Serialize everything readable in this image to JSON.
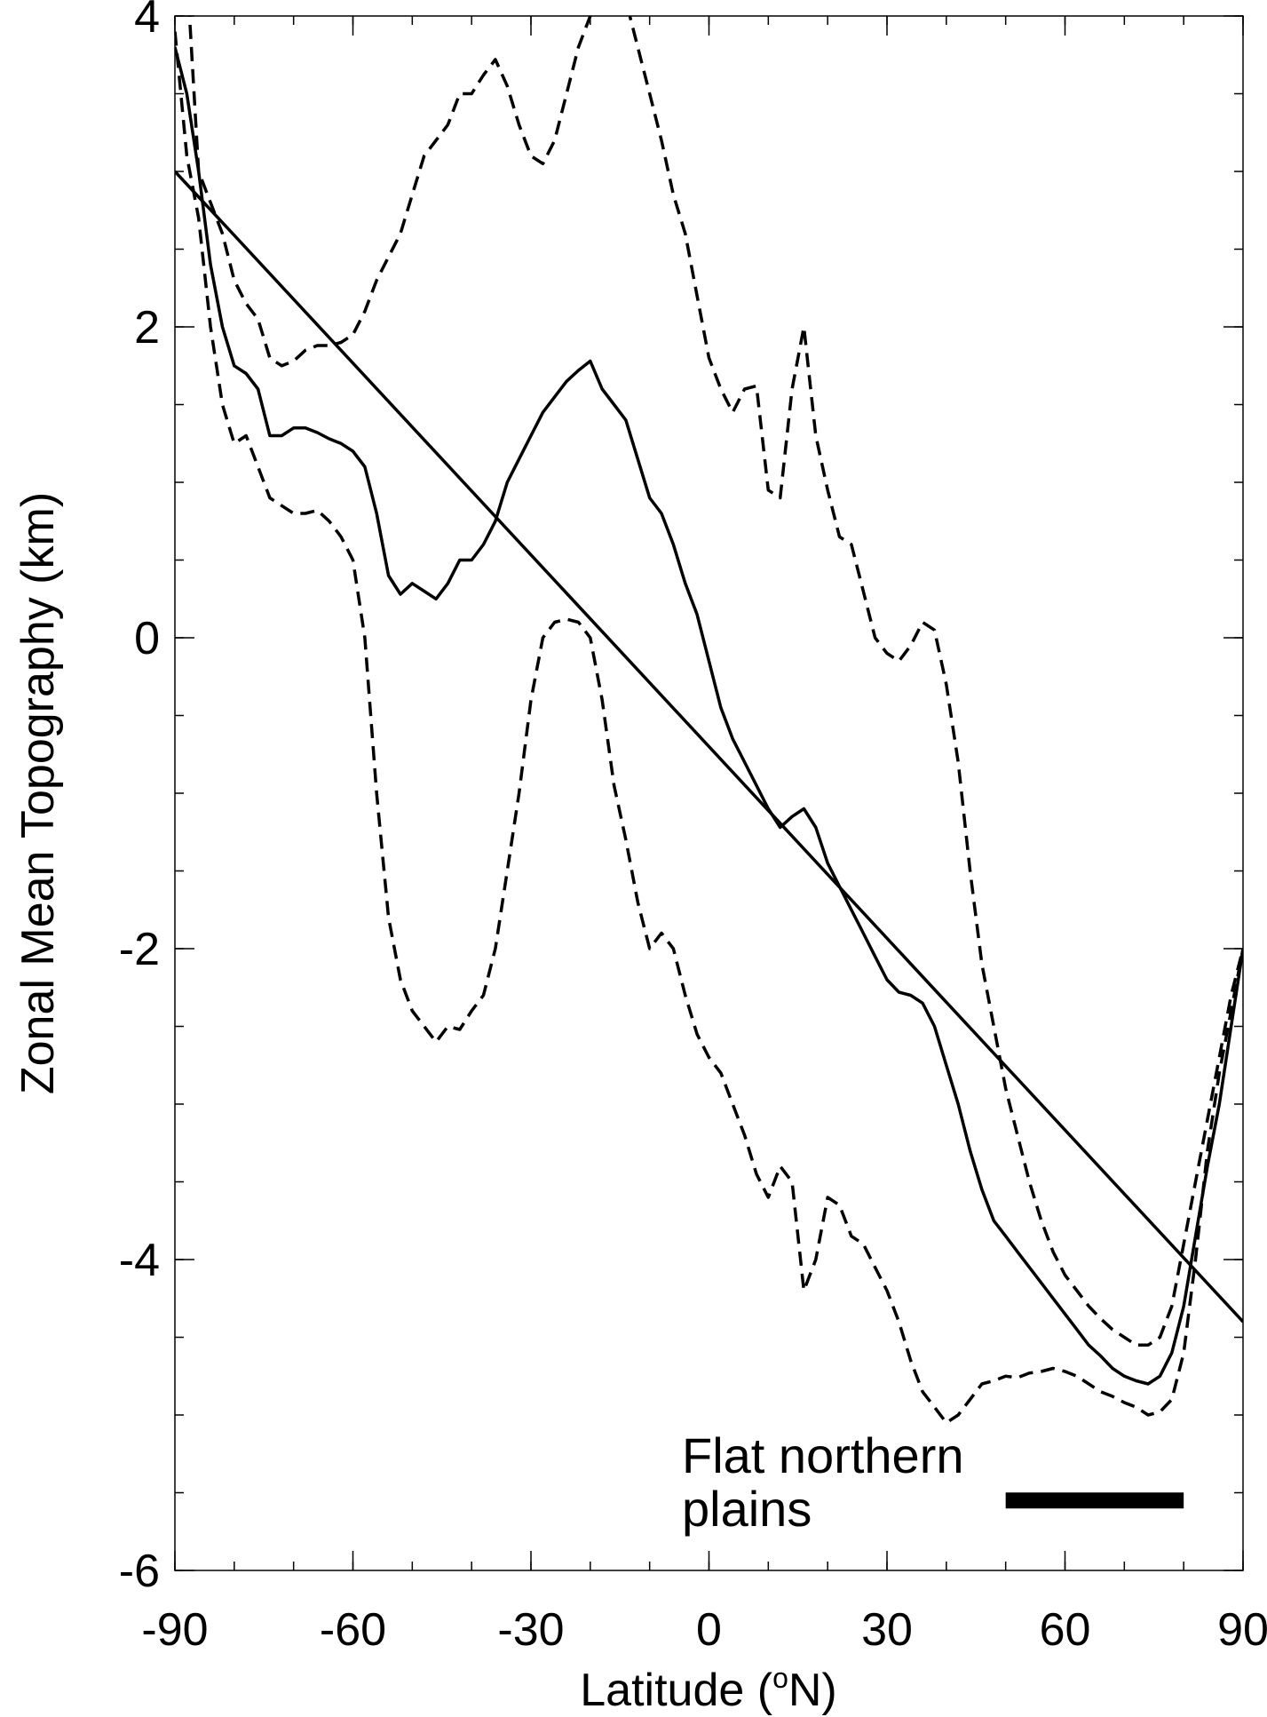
{
  "chart_data": {
    "type": "line",
    "xlabel_main": "Latitude (",
    "xlabel_sup": "o",
    "xlabel_end": "N)",
    "ylabel": "Zonal Mean Topography (km)",
    "xlim": [
      -90,
      90
    ],
    "ylim": [
      -6,
      4
    ],
    "x_ticks": [
      -90,
      -60,
      -30,
      0,
      30,
      60,
      90
    ],
    "x_tick_labels": [
      "-90",
      "-60",
      "-30",
      "0",
      "30",
      "60",
      "90"
    ],
    "y_ticks": [
      -6,
      -4,
      -2,
      0,
      2,
      4
    ],
    "y_tick_labels": [
      "-6",
      "-4",
      "-2",
      "0",
      "2",
      "4"
    ],
    "grid": false,
    "annotation": {
      "line1": "Flat northern",
      "line2": "plains",
      "bar_x": [
        50,
        80
      ],
      "bar_y": -5.55
    },
    "series": [
      {
        "style": "solid",
        "x": [
          -90,
          -88,
          -86,
          -84,
          -82,
          -80,
          -78,
          -76,
          -74,
          -72,
          -70,
          -68,
          -66,
          -64,
          -62,
          -60,
          -58,
          -56,
          -54,
          -52,
          -50,
          -48,
          -46,
          -44,
          -42,
          -40,
          -38,
          -36,
          -34,
          -32,
          -30,
          -28,
          -26,
          -24,
          -22,
          -20,
          -18,
          -16,
          -14,
          -12,
          -10,
          -8,
          -6,
          -4,
          -2,
          0,
          2,
          4,
          6,
          8,
          10,
          12,
          14,
          16,
          18,
          20,
          22,
          24,
          26,
          28,
          30,
          32,
          34,
          36,
          38,
          40,
          42,
          44,
          46,
          48,
          50,
          52,
          54,
          56,
          58,
          60,
          62,
          64,
          66,
          68,
          70,
          72,
          74,
          76,
          78,
          80,
          82,
          84,
          86,
          88,
          90
        ],
        "y": [
          3.8,
          3.5,
          3.0,
          2.4,
          2.0,
          1.75,
          1.7,
          1.6,
          1.3,
          1.3,
          1.35,
          1.35,
          1.32,
          1.28,
          1.25,
          1.2,
          1.1,
          0.8,
          0.4,
          0.28,
          0.35,
          0.3,
          0.25,
          0.35,
          0.5,
          0.5,
          0.6,
          0.75,
          1.0,
          1.15,
          1.3,
          1.45,
          1.55,
          1.65,
          1.72,
          1.78,
          1.6,
          1.5,
          1.4,
          1.15,
          0.9,
          0.8,
          0.6,
          0.35,
          0.15,
          -0.15,
          -0.45,
          -0.65,
          -0.8,
          -0.95,
          -1.1,
          -1.22,
          -1.15,
          -1.1,
          -1.22,
          -1.45,
          -1.6,
          -1.75,
          -1.9,
          -2.05,
          -2.2,
          -2.28,
          -2.3,
          -2.35,
          -2.5,
          -2.75,
          -3.0,
          -3.3,
          -3.55,
          -3.75,
          -3.85,
          -3.95,
          -4.05,
          -4.15,
          -4.25,
          -4.35,
          -4.45,
          -4.55,
          -4.62,
          -4.7,
          -4.75,
          -4.78,
          -4.8,
          -4.75,
          -4.6,
          -4.3,
          -3.85,
          -3.4,
          -3.0,
          -2.5,
          -2.0
        ]
      },
      {
        "style": "solid",
        "x": [
          -90,
          90
        ],
        "y": [
          3.0,
          -4.4
        ]
      },
      {
        "style": "dashed",
        "x": [
          -90,
          -88,
          -86,
          -84,
          -82,
          -80,
          -78,
          -76,
          -74,
          -72,
          -70,
          -68,
          -66,
          -64,
          -62,
          -60,
          -58,
          -56,
          -54,
          -52,
          -50,
          -48,
          -46,
          -44,
          -42,
          -40,
          -38,
          -36,
          -34,
          -32,
          -30,
          -28,
          -26,
          -24,
          -22,
          -20,
          -18,
          -16,
          -14,
          -12,
          -10,
          -8,
          -6,
          -4,
          -2,
          0,
          2,
          4,
          6,
          8,
          10,
          12,
          14,
          16,
          18,
          20,
          22,
          24,
          26,
          28,
          30,
          32,
          34,
          36,
          38,
          40,
          42,
          44,
          46,
          48,
          50,
          52,
          54,
          56,
          58,
          60,
          62,
          64,
          66,
          68,
          70,
          72,
          74,
          76,
          78,
          80,
          82,
          84,
          86,
          88,
          90
        ],
        "y": [
          4.1,
          4.3,
          3.0,
          2.8,
          2.6,
          2.3,
          2.15,
          2.05,
          1.8,
          1.75,
          1.78,
          1.85,
          1.88,
          1.88,
          1.9,
          1.95,
          2.1,
          2.3,
          2.45,
          2.6,
          2.85,
          3.1,
          3.2,
          3.3,
          3.5,
          3.5,
          3.62,
          3.72,
          3.55,
          3.3,
          3.1,
          3.05,
          3.2,
          3.5,
          3.8,
          4.0,
          4.1,
          4.15,
          4.1,
          3.8,
          3.5,
          3.2,
          2.85,
          2.6,
          2.2,
          1.8,
          1.6,
          1.45,
          1.6,
          1.62,
          0.95,
          0.9,
          1.6,
          2.0,
          1.3,
          0.95,
          0.65,
          0.6,
          0.3,
          0.0,
          -0.1,
          -0.15,
          -0.05,
          0.1,
          0.05,
          -0.3,
          -0.8,
          -1.5,
          -2.1,
          -2.5,
          -2.9,
          -3.2,
          -3.5,
          -3.75,
          -3.95,
          -4.1,
          -4.2,
          -4.3,
          -4.38,
          -4.45,
          -4.5,
          -4.55,
          -4.55,
          -4.5,
          -4.3,
          -3.9,
          -3.5,
          -3.1,
          -2.7,
          -2.3,
          -2.0
        ]
      },
      {
        "style": "dashed",
        "x": [
          -90,
          -88,
          -86,
          -84,
          -82,
          -80,
          -78,
          -76,
          -74,
          -72,
          -70,
          -68,
          -66,
          -64,
          -62,
          -60,
          -58,
          -56,
          -54,
          -52,
          -50,
          -48,
          -46,
          -44,
          -42,
          -40,
          -38,
          -36,
          -34,
          -32,
          -30,
          -28,
          -26,
          -24,
          -22,
          -20,
          -18,
          -16,
          -14,
          -12,
          -10,
          -8,
          -6,
          -4,
          -2,
          0,
          2,
          4,
          6,
          8,
          10,
          12,
          14,
          16,
          18,
          20,
          22,
          24,
          26,
          28,
          30,
          32,
          34,
          36,
          38,
          40,
          42,
          44,
          46,
          48,
          50,
          52,
          54,
          56,
          58,
          60,
          62,
          64,
          66,
          68,
          70,
          72,
          74,
          76,
          78,
          80,
          82,
          84,
          86,
          88,
          90
        ],
        "y": [
          3.9,
          3.1,
          2.7,
          2.0,
          1.5,
          1.25,
          1.3,
          1.1,
          0.9,
          0.85,
          0.8,
          0.8,
          0.82,
          0.75,
          0.65,
          0.5,
          0.0,
          -1.0,
          -1.8,
          -2.2,
          -2.4,
          -2.5,
          -2.6,
          -2.5,
          -2.52,
          -2.4,
          -2.3,
          -2.0,
          -1.5,
          -1.0,
          -0.4,
          0.0,
          0.1,
          0.12,
          0.1,
          0.0,
          -0.4,
          -0.95,
          -1.3,
          -1.7,
          -2.0,
          -1.9,
          -2.0,
          -2.3,
          -2.55,
          -2.7,
          -2.8,
          -3.0,
          -3.2,
          -3.45,
          -3.6,
          -3.4,
          -3.5,
          -4.2,
          -4.0,
          -3.6,
          -3.65,
          -3.85,
          -3.9,
          -4.05,
          -4.2,
          -4.4,
          -4.65,
          -4.85,
          -4.95,
          -5.05,
          -5.0,
          -4.9,
          -4.8,
          -4.78,
          -4.75,
          -4.76,
          -4.73,
          -4.72,
          -4.7,
          -4.72,
          -4.75,
          -4.8,
          -4.85,
          -4.88,
          -4.92,
          -4.95,
          -5.0,
          -4.98,
          -4.9,
          -4.6,
          -4.0,
          -3.3,
          -2.8,
          -2.4,
          -2.0
        ]
      }
    ]
  }
}
